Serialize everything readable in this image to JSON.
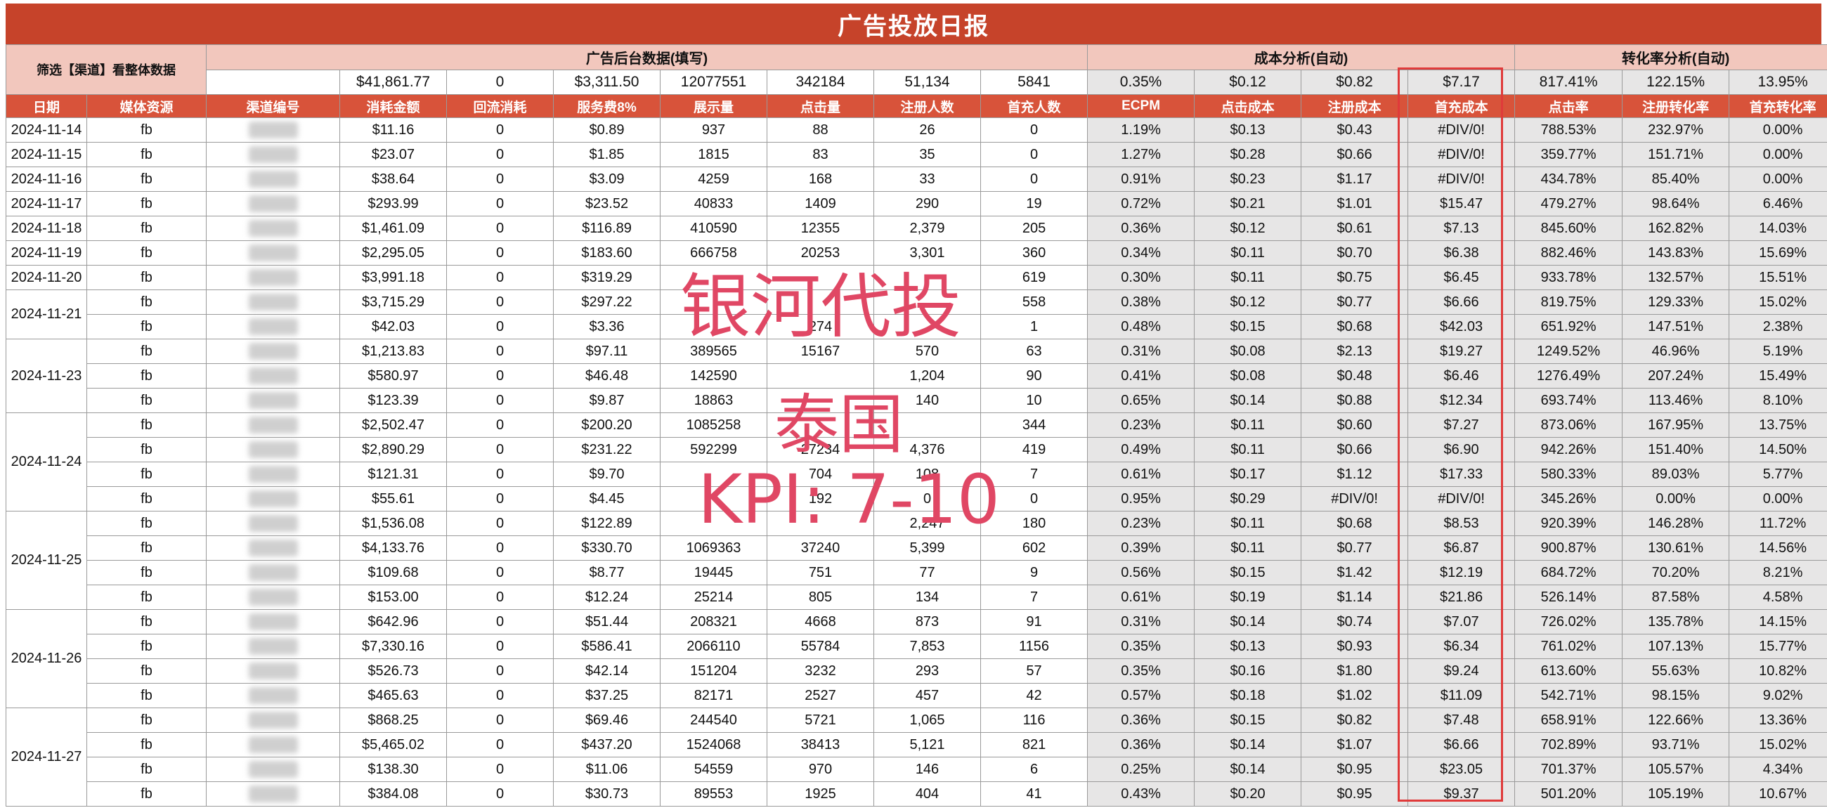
{
  "title": "广告投放日报",
  "filter_label": "筛选【渠道】看整体数据",
  "groups": {
    "backend": "广告后台数据(填写)",
    "cost": "成本分析(自动)",
    "conversion": "转化率分析(自动)"
  },
  "totals": [
    "$41,861.77",
    "0",
    "$3,311.50",
    "12077551",
    "342184",
    "51,134",
    "5841",
    "0.35%",
    "$0.12",
    "$0.82",
    "$7.17",
    "817.41%",
    "122.15%",
    "13.95%"
  ],
  "columns": [
    "日期",
    "媒体资源",
    "渠道编号",
    "消耗金额",
    "回流消耗",
    "服务费8%",
    "展示量",
    "点击量",
    "注册人数",
    "首充人数",
    "ECPM",
    "点击成本",
    "注册成本",
    "首充成本",
    "点击率",
    "注册转化率",
    "首充转化率"
  ],
  "date_groups": [
    {
      "date": "2024-11-14",
      "rows": [
        [
          "fb",
          "$11.16",
          "0",
          "$0.89",
          "937",
          "88",
          "26",
          "0",
          "1.19%",
          "$0.13",
          "$0.43",
          "#DIV/0!",
          "788.53%",
          "232.97%",
          "0.00%"
        ]
      ]
    },
    {
      "date": "2024-11-15",
      "rows": [
        [
          "fb",
          "$23.07",
          "0",
          "$1.85",
          "1815",
          "83",
          "35",
          "0",
          "1.27%",
          "$0.28",
          "$0.66",
          "#DIV/0!",
          "359.77%",
          "151.71%",
          "0.00%"
        ]
      ]
    },
    {
      "date": "2024-11-16",
      "rows": [
        [
          "fb",
          "$38.64",
          "0",
          "$3.09",
          "4259",
          "168",
          "33",
          "0",
          "0.91%",
          "$0.23",
          "$1.17",
          "#DIV/0!",
          "434.78%",
          "85.40%",
          "0.00%"
        ]
      ]
    },
    {
      "date": "2024-11-17",
      "rows": [
        [
          "fb",
          "$293.99",
          "0",
          "$23.52",
          "40833",
          "1409",
          "290",
          "19",
          "0.72%",
          "$0.21",
          "$1.01",
          "$15.47",
          "479.27%",
          "98.64%",
          "6.46%"
        ]
      ]
    },
    {
      "date": "2024-11-18",
      "rows": [
        [
          "fb",
          "$1,461.09",
          "0",
          "$116.89",
          "410590",
          "12355",
          "2,379",
          "205",
          "0.36%",
          "$0.12",
          "$0.61",
          "$7.13",
          "845.60%",
          "162.82%",
          "14.03%"
        ]
      ]
    },
    {
      "date": "2024-11-19",
      "rows": [
        [
          "fb",
          "$2,295.05",
          "0",
          "$183.60",
          "666758",
          "20253",
          "3,301",
          "360",
          "0.34%",
          "$0.11",
          "$0.70",
          "$6.38",
          "882.46%",
          "143.83%",
          "15.69%"
        ]
      ]
    },
    {
      "date": "2024-11-20",
      "rows": [
        [
          "fb",
          "$3,991.18",
          "0",
          "$319.29",
          "",
          "",
          "",
          "619",
          "0.30%",
          "$0.11",
          "$0.75",
          "$6.45",
          "933.78%",
          "132.57%",
          "15.51%"
        ]
      ]
    },
    {
      "date": "2024-11-21",
      "rows": [
        [
          "fb",
          "$3,715.29",
          "0",
          "$297.22",
          "",
          "",
          "",
          "558",
          "0.38%",
          "$0.12",
          "$0.77",
          "$6.66",
          "819.75%",
          "129.33%",
          "15.02%"
        ],
        [
          "fb",
          "$42.03",
          "0",
          "$3.36",
          "",
          "274",
          "",
          "1",
          "0.48%",
          "$0.15",
          "$0.68",
          "$42.03",
          "651.92%",
          "147.51%",
          "2.38%"
        ]
      ]
    },
    {
      "date": "2024-11-23",
      "rows": [
        [
          "fb",
          "$1,213.83",
          "0",
          "$97.11",
          "389565",
          "15167",
          "570",
          "63",
          "0.31%",
          "$0.08",
          "$2.13",
          "$19.27",
          "1249.52%",
          "46.96%",
          "5.19%"
        ],
        [
          "fb",
          "$580.97",
          "0",
          "$46.48",
          "142590",
          "",
          "1,204",
          "90",
          "0.41%",
          "$0.08",
          "$0.48",
          "$6.46",
          "1276.49%",
          "207.24%",
          "15.49%"
        ],
        [
          "fb",
          "$123.39",
          "0",
          "$9.87",
          "18863",
          "",
          "140",
          "10",
          "0.65%",
          "$0.14",
          "$0.88",
          "$12.34",
          "693.74%",
          "113.46%",
          "8.10%"
        ]
      ]
    },
    {
      "date": "2024-11-24",
      "rows": [
        [
          "fb",
          "$2,502.47",
          "0",
          "$200.20",
          "1085258",
          "",
          "",
          "344",
          "0.23%",
          "$0.11",
          "$0.60",
          "$7.27",
          "873.06%",
          "167.95%",
          "13.75%"
        ],
        [
          "fb",
          "$2,890.29",
          "0",
          "$231.22",
          "592299",
          "27234",
          "4,376",
          "419",
          "0.49%",
          "$0.11",
          "$0.66",
          "$6.90",
          "942.26%",
          "151.40%",
          "14.50%"
        ],
        [
          "fb",
          "$121.31",
          "0",
          "$9.70",
          "",
          "704",
          "108",
          "7",
          "0.61%",
          "$0.17",
          "$1.12",
          "$17.33",
          "580.33%",
          "89.03%",
          "5.77%"
        ],
        [
          "fb",
          "$55.61",
          "0",
          "$4.45",
          "",
          "192",
          "0",
          "0",
          "0.95%",
          "$0.29",
          "#DIV/0!",
          "#DIV/0!",
          "345.26%",
          "0.00%",
          "0.00%"
        ]
      ]
    },
    {
      "date": "2024-11-25",
      "rows": [
        [
          "fb",
          "$1,536.08",
          "0",
          "$122.89",
          "",
          "",
          "2,247",
          "180",
          "0.23%",
          "$0.11",
          "$0.68",
          "$8.53",
          "920.39%",
          "146.28%",
          "11.72%"
        ],
        [
          "fb",
          "$4,133.76",
          "0",
          "$330.70",
          "1069363",
          "37240",
          "5,399",
          "602",
          "0.39%",
          "$0.11",
          "$0.77",
          "$6.87",
          "900.87%",
          "130.61%",
          "14.56%"
        ],
        [
          "fb",
          "$109.68",
          "0",
          "$8.77",
          "19445",
          "751",
          "77",
          "9",
          "0.56%",
          "$0.15",
          "$1.42",
          "$12.19",
          "684.72%",
          "70.20%",
          "8.21%"
        ],
        [
          "fb",
          "$153.00",
          "0",
          "$12.24",
          "25214",
          "805",
          "134",
          "7",
          "0.61%",
          "$0.19",
          "$1.14",
          "$21.86",
          "526.14%",
          "87.58%",
          "4.58%"
        ]
      ]
    },
    {
      "date": "2024-11-26",
      "rows": [
        [
          "fb",
          "$642.96",
          "0",
          "$51.44",
          "208321",
          "4668",
          "873",
          "91",
          "0.31%",
          "$0.14",
          "$0.74",
          "$7.07",
          "726.02%",
          "135.78%",
          "14.15%"
        ],
        [
          "fb",
          "$7,330.16",
          "0",
          "$586.41",
          "2066110",
          "55784",
          "7,853",
          "1156",
          "0.35%",
          "$0.13",
          "$0.93",
          "$6.34",
          "761.02%",
          "107.13%",
          "15.77%"
        ],
        [
          "fb",
          "$526.73",
          "0",
          "$42.14",
          "151204",
          "3232",
          "293",
          "57",
          "0.35%",
          "$0.16",
          "$1.80",
          "$9.24",
          "613.60%",
          "55.63%",
          "10.82%"
        ],
        [
          "fb",
          "$465.63",
          "0",
          "$37.25",
          "82171",
          "2527",
          "457",
          "42",
          "0.57%",
          "$0.18",
          "$1.02",
          "$11.09",
          "542.71%",
          "98.15%",
          "9.02%"
        ]
      ]
    },
    {
      "date": "2024-11-27",
      "rows": [
        [
          "fb",
          "$868.25",
          "0",
          "$69.46",
          "244540",
          "5721",
          "1,065",
          "116",
          "0.36%",
          "$0.15",
          "$0.82",
          "$7.48",
          "658.91%",
          "122.66%",
          "13.36%"
        ],
        [
          "fb",
          "$5,465.02",
          "0",
          "$437.20",
          "1524068",
          "38413",
          "5,121",
          "821",
          "0.36%",
          "$0.14",
          "$1.07",
          "$6.66",
          "702.89%",
          "93.71%",
          "15.02%"
        ],
        [
          "fb",
          "$138.30",
          "0",
          "$11.06",
          "54559",
          "970",
          "146",
          "6",
          "0.25%",
          "$0.14",
          "$0.95",
          "$23.05",
          "701.37%",
          "105.57%",
          "4.34%"
        ],
        [
          "fb",
          "$384.08",
          "0",
          "$30.73",
          "89553",
          "1925",
          "404",
          "41",
          "0.43%",
          "$0.20",
          "$0.95",
          "$9.37",
          "501.20%",
          "105.19%",
          "10.67%"
        ]
      ]
    }
  ],
  "watermark": {
    "line1": "银河代投",
    "line2": "泰国",
    "line3": "KPI: 7-10"
  },
  "colors": {
    "title_bg": "#c6432a",
    "header_pink": "#f2c7bd",
    "column_header_red": "#d8533a",
    "analysis_gray": "#e7e6e6",
    "highlight_box": "#e03a3a",
    "watermark": "#e04764"
  }
}
